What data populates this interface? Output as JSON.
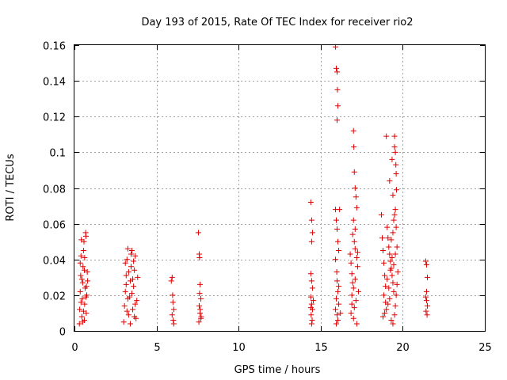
{
  "chart_data": {
    "type": "scatter",
    "title": "Day 193 of 2015, Rate Of TEC Index for receiver rio2",
    "xlabel": "GPS time / hours",
    "ylabel": "ROTI / TECUs",
    "xlim": [
      0,
      25
    ],
    "ylim": [
      0,
      0.16
    ],
    "xticks": [
      "0",
      "5",
      "10",
      "15",
      "20",
      "25"
    ],
    "yticks": [
      "0",
      "0.02",
      "0.04",
      "0.06",
      "0.08",
      "0.1",
      "0.12",
      "0.14",
      "0.16"
    ],
    "grid": true,
    "marker": "+",
    "color": "#e00000",
    "series": [
      {
        "points": [
          [
            0.3,
            0.004
          ],
          [
            0.32,
            0.012
          ],
          [
            0.35,
            0.022
          ],
          [
            0.38,
            0.031
          ],
          [
            0.4,
            0.042
          ],
          [
            0.42,
            0.051
          ],
          [
            0.45,
            0.008
          ],
          [
            0.48,
            0.018
          ],
          [
            0.5,
            0.027
          ],
          [
            0.52,
            0.036
          ],
          [
            0.55,
            0.045
          ],
          [
            0.58,
            0.05
          ],
          [
            0.6,
            0.006
          ],
          [
            0.62,
            0.015
          ],
          [
            0.65,
            0.024
          ],
          [
            0.68,
            0.055
          ],
          [
            0.7,
            0.053
          ],
          [
            0.72,
            0.01
          ],
          [
            0.75,
            0.02
          ],
          [
            0.78,
            0.033
          ],
          [
            0.8,
            0.028
          ],
          [
            0.35,
            0.038
          ],
          [
            0.45,
            0.029
          ],
          [
            0.55,
            0.011
          ],
          [
            0.62,
            0.041
          ],
          [
            0.7,
            0.019
          ],
          [
            0.5,
            0.005
          ],
          [
            0.4,
            0.016
          ],
          [
            0.6,
            0.034
          ],
          [
            0.73,
            0.025
          ],
          [
            3.0,
            0.005
          ],
          [
            3.05,
            0.014
          ],
          [
            3.1,
            0.022
          ],
          [
            3.15,
            0.031
          ],
          [
            3.2,
            0.04
          ],
          [
            3.25,
            0.046
          ],
          [
            3.3,
            0.009
          ],
          [
            3.35,
            0.019
          ],
          [
            3.4,
            0.028
          ],
          [
            3.45,
            0.036
          ],
          [
            3.5,
            0.045
          ],
          [
            3.55,
            0.012
          ],
          [
            3.6,
            0.025
          ],
          [
            3.65,
            0.034
          ],
          [
            3.7,
            0.042
          ],
          [
            3.75,
            0.007
          ],
          [
            3.8,
            0.017
          ],
          [
            3.85,
            0.03
          ],
          [
            3.1,
            0.038
          ],
          [
            3.2,
            0.011
          ],
          [
            3.3,
            0.033
          ],
          [
            3.4,
            0.004
          ],
          [
            3.5,
            0.021
          ],
          [
            3.6,
            0.039
          ],
          [
            3.7,
            0.015
          ],
          [
            3.15,
            0.026
          ],
          [
            3.45,
            0.043
          ],
          [
            3.55,
            0.029
          ],
          [
            3.25,
            0.018
          ],
          [
            3.65,
            0.008
          ],
          [
            5.9,
            0.028
          ],
          [
            5.95,
            0.03
          ],
          [
            6.0,
            0.016
          ],
          [
            6.05,
            0.012
          ],
          [
            5.95,
            0.009
          ],
          [
            6.02,
            0.006
          ],
          [
            6.05,
            0.004
          ],
          [
            5.98,
            0.02
          ],
          [
            7.55,
            0.055
          ],
          [
            7.6,
            0.043
          ],
          [
            7.62,
            0.041
          ],
          [
            7.65,
            0.026
          ],
          [
            7.7,
            0.018
          ],
          [
            7.6,
            0.014
          ],
          [
            7.65,
            0.01
          ],
          [
            7.7,
            0.007
          ],
          [
            7.58,
            0.005
          ],
          [
            7.72,
            0.008
          ],
          [
            7.66,
            0.012
          ],
          [
            7.62,
            0.021
          ],
          [
            14.4,
            0.072
          ],
          [
            14.45,
            0.062
          ],
          [
            14.5,
            0.055
          ],
          [
            14.45,
            0.05
          ],
          [
            14.4,
            0.032
          ],
          [
            14.45,
            0.028
          ],
          [
            14.5,
            0.024
          ],
          [
            14.4,
            0.019
          ],
          [
            14.45,
            0.015
          ],
          [
            14.5,
            0.012
          ],
          [
            14.42,
            0.009
          ],
          [
            14.48,
            0.006
          ],
          [
            14.45,
            0.004
          ],
          [
            14.4,
            0.013
          ],
          [
            14.55,
            0.017
          ],
          [
            15.9,
            0.159
          ],
          [
            15.95,
            0.147
          ],
          [
            16.0,
            0.145
          ],
          [
            16.02,
            0.135
          ],
          [
            16.05,
            0.126
          ],
          [
            16.0,
            0.118
          ],
          [
            15.9,
            0.068
          ],
          [
            15.95,
            0.062
          ],
          [
            16.0,
            0.057
          ],
          [
            16.05,
            0.05
          ],
          [
            16.1,
            0.045
          ],
          [
            15.9,
            0.04
          ],
          [
            16.0,
            0.028
          ],
          [
            16.05,
            0.022
          ],
          [
            15.95,
            0.018
          ],
          [
            16.1,
            0.015
          ],
          [
            15.9,
            0.012
          ],
          [
            16.0,
            0.009
          ],
          [
            16.05,
            0.006
          ],
          [
            15.95,
            0.004
          ],
          [
            16.1,
            0.025
          ],
          [
            16.15,
            0.068
          ],
          [
            16.2,
            0.01
          ],
          [
            15.98,
            0.033
          ],
          [
            16.8,
            0.043
          ],
          [
            16.85,
            0.038
          ],
          [
            16.9,
            0.032
          ],
          [
            16.95,
            0.027
          ],
          [
            17.0,
            0.112
          ],
          [
            17.02,
            0.103
          ],
          [
            17.05,
            0.089
          ],
          [
            17.1,
            0.08
          ],
          [
            17.15,
            0.075
          ],
          [
            17.2,
            0.069
          ],
          [
            17.0,
            0.062
          ],
          [
            16.95,
            0.054
          ],
          [
            17.05,
            0.05
          ],
          [
            17.1,
            0.046
          ],
          [
            17.2,
            0.041
          ],
          [
            17.25,
            0.036
          ],
          [
            17.1,
            0.029
          ],
          [
            17.0,
            0.024
          ],
          [
            16.9,
            0.02
          ],
          [
            17.15,
            0.017
          ],
          [
            17.05,
            0.013
          ],
          [
            16.85,
            0.01
          ],
          [
            17.0,
            0.007
          ],
          [
            17.2,
            0.004
          ],
          [
            17.3,
            0.022
          ],
          [
            17.25,
            0.044
          ],
          [
            16.9,
            0.015
          ],
          [
            17.1,
            0.057
          ],
          [
            18.7,
            0.065
          ],
          [
            18.75,
            0.052
          ],
          [
            18.8,
            0.045
          ],
          [
            18.85,
            0.038
          ],
          [
            18.9,
            0.031
          ],
          [
            18.95,
            0.025
          ],
          [
            19.0,
            0.109
          ],
          [
            19.05,
            0.058
          ],
          [
            19.1,
            0.052
          ],
          [
            19.15,
            0.047
          ],
          [
            19.2,
            0.043
          ],
          [
            19.25,
            0.039
          ],
          [
            19.3,
            0.035
          ],
          [
            19.35,
            0.031
          ],
          [
            19.4,
            0.027
          ],
          [
            19.45,
            0.022
          ],
          [
            19.5,
            0.109
          ],
          [
            19.55,
            0.1
          ],
          [
            19.58,
            0.093
          ],
          [
            19.6,
            0.088
          ],
          [
            19.62,
            0.079
          ],
          [
            19.55,
            0.068
          ],
          [
            19.5,
            0.065
          ],
          [
            19.45,
            0.062
          ],
          [
            19.6,
            0.058
          ],
          [
            19.4,
            0.055
          ],
          [
            19.3,
            0.051
          ],
          [
            19.65,
            0.047
          ],
          [
            19.2,
            0.018
          ],
          [
            19.1,
            0.015
          ],
          [
            19.0,
            0.012
          ],
          [
            18.9,
            0.01
          ],
          [
            18.8,
            0.008
          ],
          [
            19.3,
            0.006
          ],
          [
            19.4,
            0.004
          ],
          [
            19.5,
            0.009
          ],
          [
            19.55,
            0.014
          ],
          [
            19.6,
            0.02
          ],
          [
            19.65,
            0.026
          ],
          [
            19.7,
            0.033
          ],
          [
            18.85,
            0.02
          ],
          [
            18.95,
            0.016
          ],
          [
            19.05,
            0.029
          ],
          [
            19.15,
            0.024
          ],
          [
            19.25,
            0.034
          ],
          [
            19.35,
            0.041
          ],
          [
            19.45,
            0.037
          ],
          [
            19.55,
            0.043
          ],
          [
            19.2,
            0.084
          ],
          [
            19.4,
            0.076
          ],
          [
            19.35,
            0.096
          ],
          [
            19.5,
            0.103
          ],
          [
            21.4,
            0.039
          ],
          [
            21.45,
            0.037
          ],
          [
            21.5,
            0.03
          ],
          [
            21.4,
            0.019
          ],
          [
            21.45,
            0.017
          ],
          [
            21.5,
            0.014
          ],
          [
            21.42,
            0.011
          ],
          [
            21.48,
            0.009
          ],
          [
            21.45,
            0.022
          ]
        ]
      }
    ]
  }
}
